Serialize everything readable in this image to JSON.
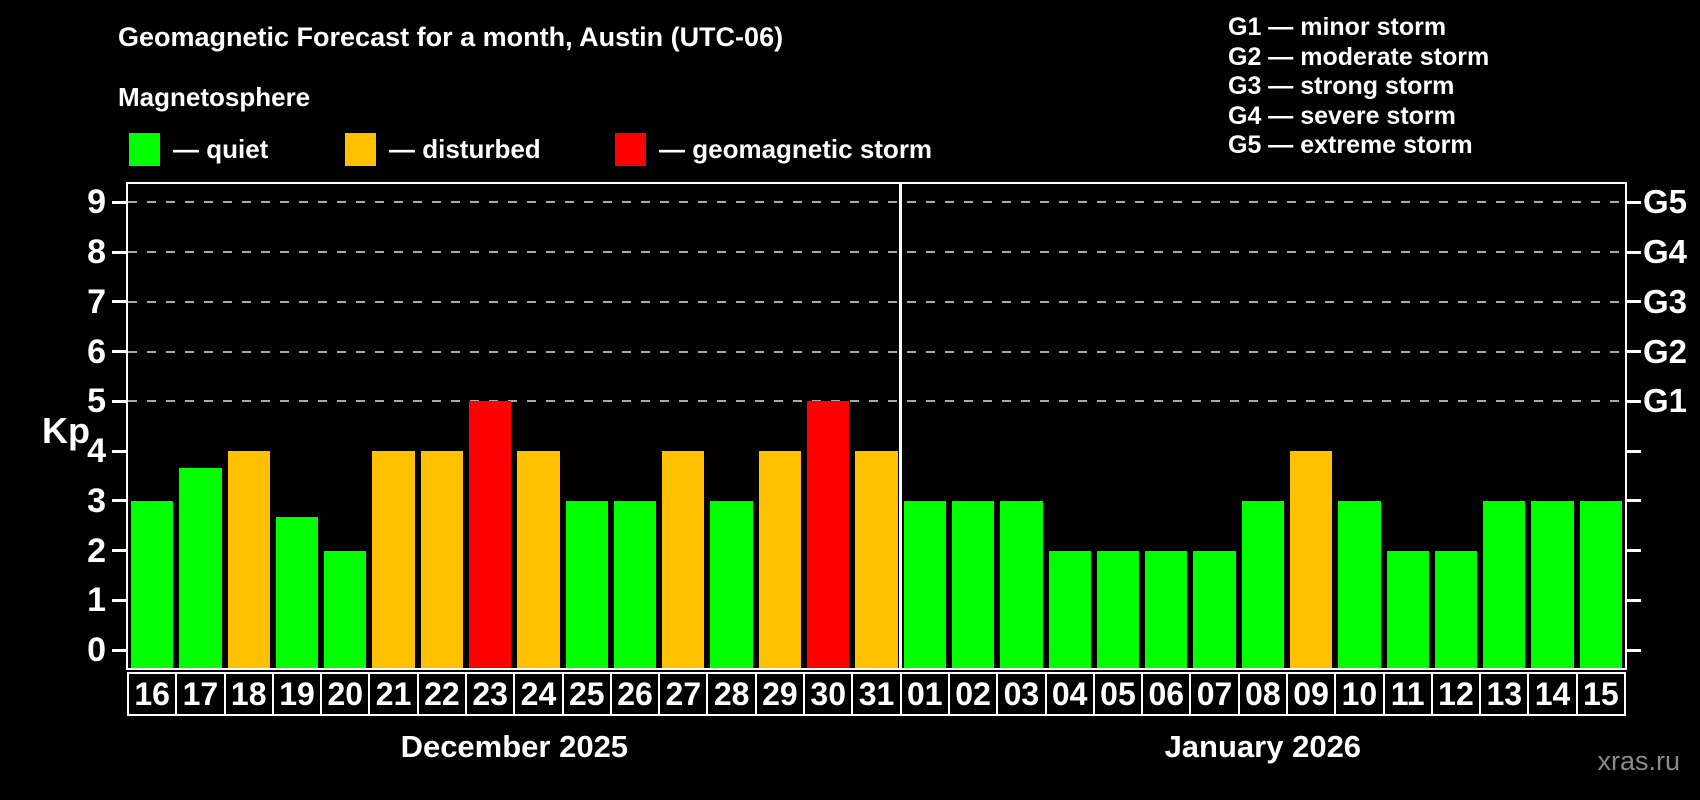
{
  "header": {
    "title": "Geomagnetic Forecast for a month, Austin (UTC-06)",
    "subtitle": "Magnetosphere"
  },
  "legend": {
    "items": [
      {
        "key": "quiet",
        "label": "— quiet",
        "color": "#00ff00"
      },
      {
        "key": "disturbed",
        "label": "— disturbed",
        "color": "#ffc000"
      },
      {
        "key": "storm",
        "label": "— geomagnetic storm",
        "color": "#ff0000"
      }
    ]
  },
  "storm_scale_legend": {
    "lines": [
      "G1 — minor storm",
      "G2 — moderate storm",
      "G3 — strong storm",
      "G4 — severe storm",
      "G5 — extreme storm"
    ]
  },
  "watermark": "xras.ru",
  "chart_data": {
    "type": "bar",
    "title": "Geomagnetic Forecast for a month, Austin (UTC-06)",
    "ylabel": "Kp",
    "ylim": [
      0,
      9
    ],
    "yticks": [
      0,
      1,
      2,
      3,
      4,
      5,
      6,
      7,
      8,
      9
    ],
    "grid_kp_levels": [
      5,
      6,
      7,
      8,
      9
    ],
    "grid_on": true,
    "legend_position": "top",
    "right_axis": [
      {
        "kp": 5,
        "label": "G1"
      },
      {
        "kp": 6,
        "label": "G2"
      },
      {
        "kp": 7,
        "label": "G3"
      },
      {
        "kp": 8,
        "label": "G4"
      },
      {
        "kp": 9,
        "label": "G5"
      }
    ],
    "status_colors": {
      "quiet": "#00ff00",
      "disturbed": "#ffc000",
      "storm": "#ff0000"
    },
    "months": [
      {
        "label": "December 2025",
        "days": [
          {
            "day": "16",
            "kp": 3,
            "status": "quiet"
          },
          {
            "day": "17",
            "kp": 3.67,
            "status": "quiet"
          },
          {
            "day": "18",
            "kp": 4,
            "status": "disturbed"
          },
          {
            "day": "19",
            "kp": 2.67,
            "status": "quiet"
          },
          {
            "day": "20",
            "kp": 2,
            "status": "quiet"
          },
          {
            "day": "21",
            "kp": 4,
            "status": "disturbed"
          },
          {
            "day": "22",
            "kp": 4,
            "status": "disturbed"
          },
          {
            "day": "23",
            "kp": 5,
            "status": "storm"
          },
          {
            "day": "24",
            "kp": 4,
            "status": "disturbed"
          },
          {
            "day": "25",
            "kp": 3,
            "status": "quiet"
          },
          {
            "day": "26",
            "kp": 3,
            "status": "quiet"
          },
          {
            "day": "27",
            "kp": 4,
            "status": "disturbed"
          },
          {
            "day": "28",
            "kp": 3,
            "status": "quiet"
          },
          {
            "day": "29",
            "kp": 4,
            "status": "disturbed"
          },
          {
            "day": "30",
            "kp": 5,
            "status": "storm"
          },
          {
            "day": "31",
            "kp": 4,
            "status": "disturbed"
          }
        ]
      },
      {
        "label": "January 2026",
        "days": [
          {
            "day": "01",
            "kp": 3,
            "status": "quiet"
          },
          {
            "day": "02",
            "kp": 3,
            "status": "quiet"
          },
          {
            "day": "03",
            "kp": 3,
            "status": "quiet"
          },
          {
            "day": "04",
            "kp": 2,
            "status": "quiet"
          },
          {
            "day": "05",
            "kp": 2,
            "status": "quiet"
          },
          {
            "day": "06",
            "kp": 2,
            "status": "quiet"
          },
          {
            "day": "07",
            "kp": 2,
            "status": "quiet"
          },
          {
            "day": "08",
            "kp": 3,
            "status": "quiet"
          },
          {
            "day": "09",
            "kp": 4,
            "status": "disturbed"
          },
          {
            "day": "10",
            "kp": 3,
            "status": "quiet"
          },
          {
            "day": "11",
            "kp": 2,
            "status": "quiet"
          },
          {
            "day": "12",
            "kp": 2,
            "status": "quiet"
          },
          {
            "day": "13",
            "kp": 3,
            "status": "quiet"
          },
          {
            "day": "14",
            "kp": 3,
            "status": "quiet"
          },
          {
            "day": "15",
            "kp": 3,
            "status": "quiet"
          }
        ]
      }
    ]
  }
}
